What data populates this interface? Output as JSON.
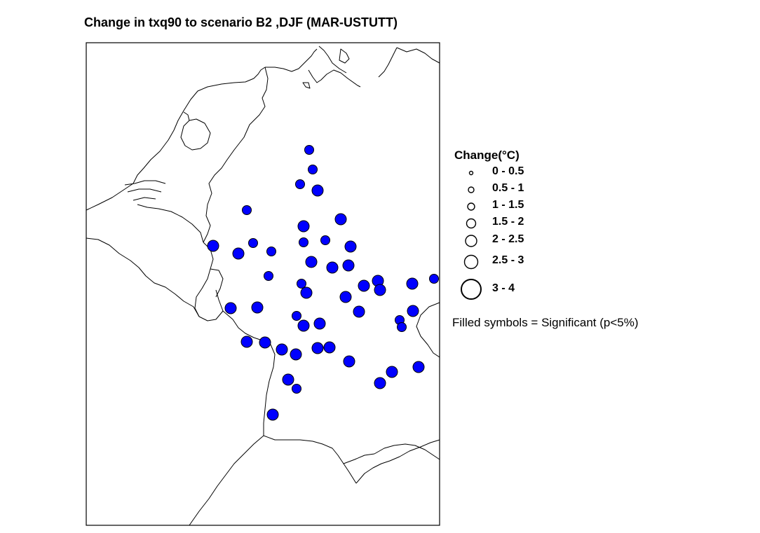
{
  "title": "Change in txq90 to scenario B2 ,DJF (MAR-USTUTT)",
  "legend": {
    "title": "Change(°C)",
    "classes": [
      "0 - 0.5",
      "0.5 - 1",
      "1 - 1.5",
      "1.5 - 2",
      "2 - 2.5",
      "2.5 - 3",
      "3 - 4"
    ],
    "note": "Filled symbols = Significant (p<5%)"
  },
  "colors": {
    "significant_fill": "#0000ff",
    "symbol_stroke": "#000000",
    "border_lines": "#000000",
    "background": "#ffffff"
  },
  "stations": [
    {
      "class": 4,
      "filled": true
    },
    {
      "class": 4,
      "filled": true
    },
    {
      "class": 4,
      "filled": true
    },
    {
      "class": 5,
      "filled": true
    },
    {
      "class": 4,
      "filled": true
    },
    {
      "class": 5,
      "filled": true
    },
    {
      "class": 5,
      "filled": true
    },
    {
      "class": 4,
      "filled": true
    },
    {
      "class": 4,
      "filled": true
    },
    {
      "class": 5,
      "filled": true
    },
    {
      "class": 5,
      "filled": true
    },
    {
      "class": 4,
      "filled": true
    },
    {
      "class": 4,
      "filled": true
    },
    {
      "class": 5,
      "filled": true
    },
    {
      "class": 5,
      "filled": true
    },
    {
      "class": 5,
      "filled": true
    },
    {
      "class": 4,
      "filled": true
    },
    {
      "class": 4,
      "filled": true
    },
    {
      "class": 5,
      "filled": true
    },
    {
      "class": 5,
      "filled": true
    },
    {
      "class": 5,
      "filled": true
    },
    {
      "class": 5,
      "filled": true
    },
    {
      "class": 5,
      "filled": true
    },
    {
      "class": 5,
      "filled": true
    },
    {
      "class": 4,
      "filled": true
    },
    {
      "class": 5,
      "filled": true
    },
    {
      "class": 5,
      "filled": true
    },
    {
      "class": 5,
      "filled": true
    },
    {
      "class": 5,
      "filled": true
    },
    {
      "class": 4,
      "filled": true
    },
    {
      "class": 5,
      "filled": true
    },
    {
      "class": 5,
      "filled": true
    },
    {
      "class": 5,
      "filled": true
    },
    {
      "class": 4,
      "filled": true
    },
    {
      "class": 4,
      "filled": true
    },
    {
      "class": 5,
      "filled": true
    },
    {
      "class": 5,
      "filled": true
    },
    {
      "class": 5,
      "filled": true
    },
    {
      "class": 5,
      "filled": true
    },
    {
      "class": 5,
      "filled": true
    },
    {
      "class": 5,
      "filled": true
    },
    {
      "class": 5,
      "filled": true
    },
    {
      "class": 5,
      "filled": true
    },
    {
      "class": 5,
      "filled": true
    },
    {
      "class": 5,
      "filled": true
    },
    {
      "class": 5,
      "filled": true
    },
    {
      "class": 4,
      "filled": true
    },
    {
      "class": 5,
      "filled": true
    }
  ]
}
